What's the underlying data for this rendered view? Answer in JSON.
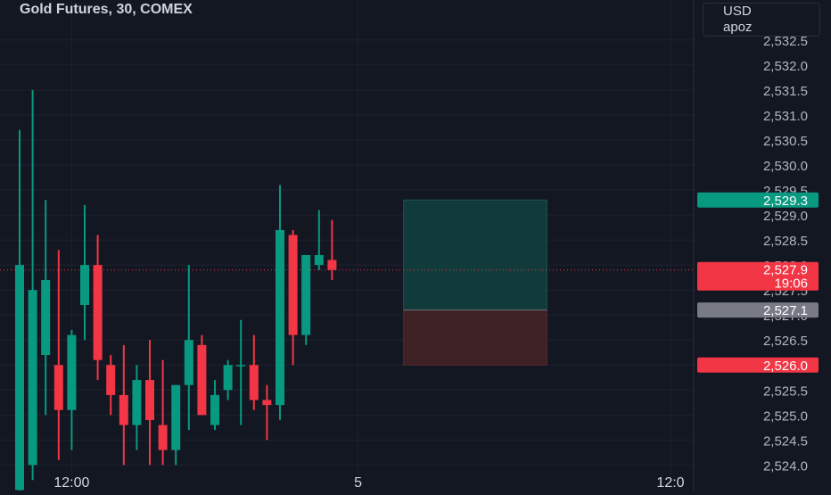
{
  "header": {
    "title": "Gold Futures, 30, COMEX",
    "currency": "USD",
    "unit_label": "apoz"
  },
  "colors": {
    "background": "#131722",
    "grid": "#1e222d",
    "up": "#089981",
    "down": "#f23645",
    "text": "#d1d4dc",
    "tick_text": "#b2b5be",
    "profit_zone": "#113a3a",
    "loss_zone": "#3d2125"
  },
  "chart_data": {
    "type": "candlestick",
    "title": "Gold Futures, 30, COMEX",
    "ylim": [
      2523.9,
      2533.3
    ],
    "y_ticks": [
      2524.0,
      2524.5,
      2525.0,
      2525.5,
      2526.0,
      2526.5,
      2527.0,
      2527.5,
      2528.0,
      2528.5,
      2529.0,
      2529.5,
      2530.0,
      2530.5,
      2531.0,
      2531.5,
      2532.0,
      2532.5
    ],
    "y_tick_labels": [
      "2,524.0",
      "2,524.5",
      "2,525.0",
      "2,525.5",
      "2,526.0",
      "2,526.5",
      "2,527.0",
      "2,527.5",
      "2,528.0",
      "2,528.5",
      "2,529.0",
      "2,529.5",
      "2,530.0",
      "2,530.5",
      "2,531.0",
      "2,531.5",
      "2,532.0",
      "2,532.5"
    ],
    "x_labels": [
      {
        "label": "12:00",
        "index": 4
      },
      {
        "label": "5",
        "index": 26
      },
      {
        "label": "12:0",
        "index": 50
      }
    ],
    "candles": [
      {
        "open": 2523.5,
        "high": 2530.7,
        "low": 2523.0,
        "close": 2528.0
      },
      {
        "open": 2524.0,
        "high": 2531.5,
        "low": 2523.7,
        "close": 2527.5
      },
      {
        "open": 2526.2,
        "high": 2529.3,
        "low": 2525.0,
        "close": 2527.7
      },
      {
        "open": 2526.0,
        "high": 2528.3,
        "low": 2524.1,
        "close": 2525.1
      },
      {
        "open": 2525.1,
        "high": 2526.7,
        "low": 2524.3,
        "close": 2526.6
      },
      {
        "open": 2527.2,
        "high": 2529.2,
        "low": 2526.5,
        "close": 2528.0
      },
      {
        "open": 2528.0,
        "high": 2528.6,
        "low": 2525.7,
        "close": 2526.1
      },
      {
        "open": 2526.0,
        "high": 2526.2,
        "low": 2525.0,
        "close": 2525.4
      },
      {
        "open": 2525.4,
        "high": 2526.4,
        "low": 2524.0,
        "close": 2524.8
      },
      {
        "open": 2524.8,
        "high": 2526.0,
        "low": 2524.3,
        "close": 2525.7
      },
      {
        "open": 2525.7,
        "high": 2526.5,
        "low": 2524.0,
        "close": 2524.9
      },
      {
        "open": 2524.8,
        "high": 2526.1,
        "low": 2524.0,
        "close": 2524.3
      },
      {
        "open": 2524.3,
        "high": 2525.6,
        "low": 2524.0,
        "close": 2525.6
      },
      {
        "open": 2525.6,
        "high": 2528.0,
        "low": 2524.7,
        "close": 2526.5
      },
      {
        "open": 2526.4,
        "high": 2526.6,
        "low": 2525.0,
        "close": 2525.0
      },
      {
        "open": 2524.8,
        "high": 2525.7,
        "low": 2524.7,
        "close": 2525.4
      },
      {
        "open": 2525.5,
        "high": 2526.1,
        "low": 2525.3,
        "close": 2526.0
      },
      {
        "open": 2526.0,
        "high": 2526.9,
        "low": 2524.8,
        "close": 2526.0
      },
      {
        "open": 2526.0,
        "high": 2526.6,
        "low": 2525.1,
        "close": 2525.3
      },
      {
        "open": 2525.3,
        "high": 2525.6,
        "low": 2524.5,
        "close": 2525.2
      },
      {
        "open": 2525.2,
        "high": 2529.6,
        "low": 2524.9,
        "close": 2528.7
      },
      {
        "open": 2528.6,
        "high": 2528.7,
        "low": 2526.0,
        "close": 2526.6
      },
      {
        "open": 2526.6,
        "high": 2528.2,
        "low": 2526.4,
        "close": 2528.2
      },
      {
        "open": 2528.0,
        "high": 2529.1,
        "low": 2527.9,
        "close": 2528.2
      },
      {
        "open": 2528.1,
        "high": 2528.9,
        "low": 2527.7,
        "close": 2527.9
      }
    ],
    "trade_box": {
      "start_index": 29.5,
      "end_index": 40.5,
      "take_profit": 2529.3,
      "entry": 2527.1,
      "stop_loss": 2526.0
    },
    "price_markers": [
      {
        "label": "2,529.3",
        "value": 2529.3,
        "color": "#089981",
        "text_color": "#ffffff"
      },
      {
        "label": "2,527.9",
        "sub_label": "19:06",
        "value": 2527.9,
        "color": "#f23645",
        "text_color": "#ffffff"
      },
      {
        "label": "2,527.1",
        "value": 2527.1,
        "color": "#787b86",
        "text_color": "#ffffff"
      },
      {
        "label": "2,526.0",
        "value": 2526.0,
        "color": "#f23645",
        "text_color": "#ffffff"
      }
    ],
    "current_price_line": 2527.9
  }
}
